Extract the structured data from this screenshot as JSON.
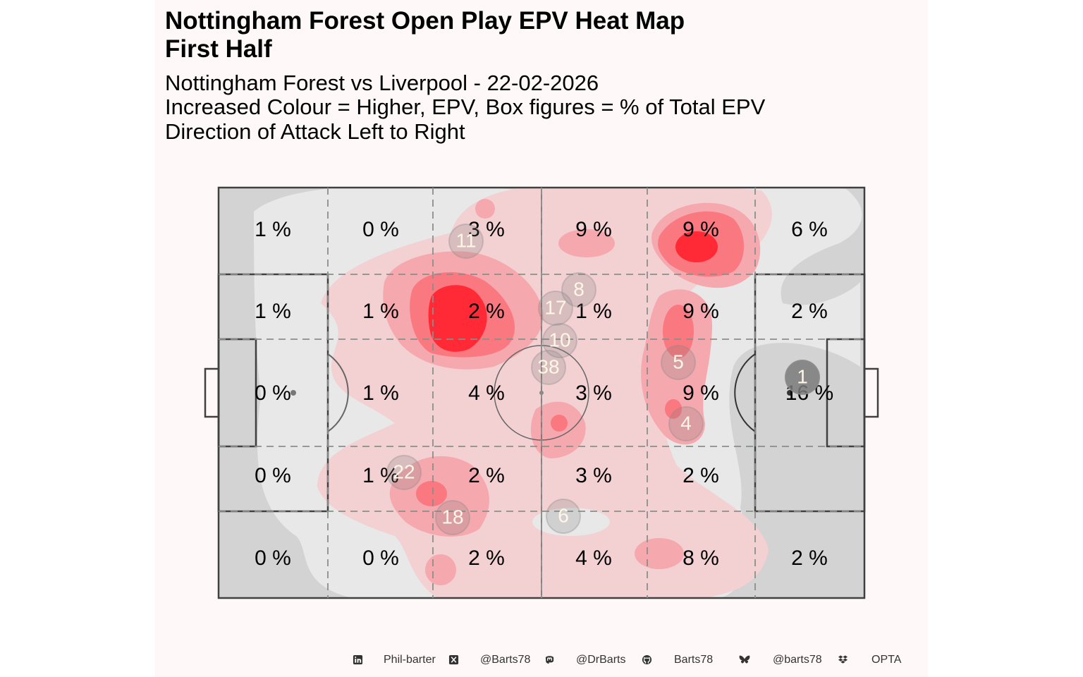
{
  "title_line1": "Nottingham Forest Open Play EPV Heat Map",
  "title_line2": "First Half",
  "subtitle_line1": "Nottingham Forest vs Liverpool - 22-02-2026",
  "subtitle_line2": "Increased Colour = Higher, EPV, Box figures = % of Total EPV",
  "subtitle_line3": "Direction of Attack Left to Right",
  "colors": {
    "panel_bg": "#fff8f8",
    "pitch_fill": "#d3d3d3",
    "pitch_line": "#404040",
    "heat_low": "#e8e8e8",
    "heat_high": "#ff2030",
    "player_marker": "#7a7a7a"
  },
  "chart_data": {
    "type": "heatmap",
    "grid_rows": 5,
    "grid_cols": 6,
    "zone_percentages": [
      [
        "1 %",
        "0 %",
        "3 %",
        "9 %",
        "9 %",
        "6 %"
      ],
      [
        "1 %",
        "1 %",
        "2 %",
        "1 %",
        "9 %",
        "2 %"
      ],
      [
        "0 %",
        "1 %",
        "4 %",
        "3 %",
        "9 %",
        "16 %"
      ],
      [
        "0 %",
        "1 %",
        "2 %",
        "3 %",
        "2 %",
        ""
      ],
      [
        "0 %",
        "0 %",
        "2 %",
        "4 %",
        "8 %",
        "2 %"
      ]
    ],
    "player_markers": [
      "11",
      "8",
      "17",
      "10",
      "38",
      "5",
      "1",
      "4",
      "22",
      "18",
      "6"
    ]
  },
  "footer": {
    "items": [
      {
        "icon": "linkedin-icon",
        "label": "Phil-barter"
      },
      {
        "icon": "x-icon",
        "label": "@Barts78"
      },
      {
        "icon": "mastodon-icon",
        "label": "@DrBarts"
      },
      {
        "icon": "github-icon",
        "label": "Barts78"
      },
      {
        "icon": "bluesky-icon",
        "label": "@barts78"
      },
      {
        "icon": "dropbox-icon",
        "label": "OPTA"
      }
    ]
  }
}
